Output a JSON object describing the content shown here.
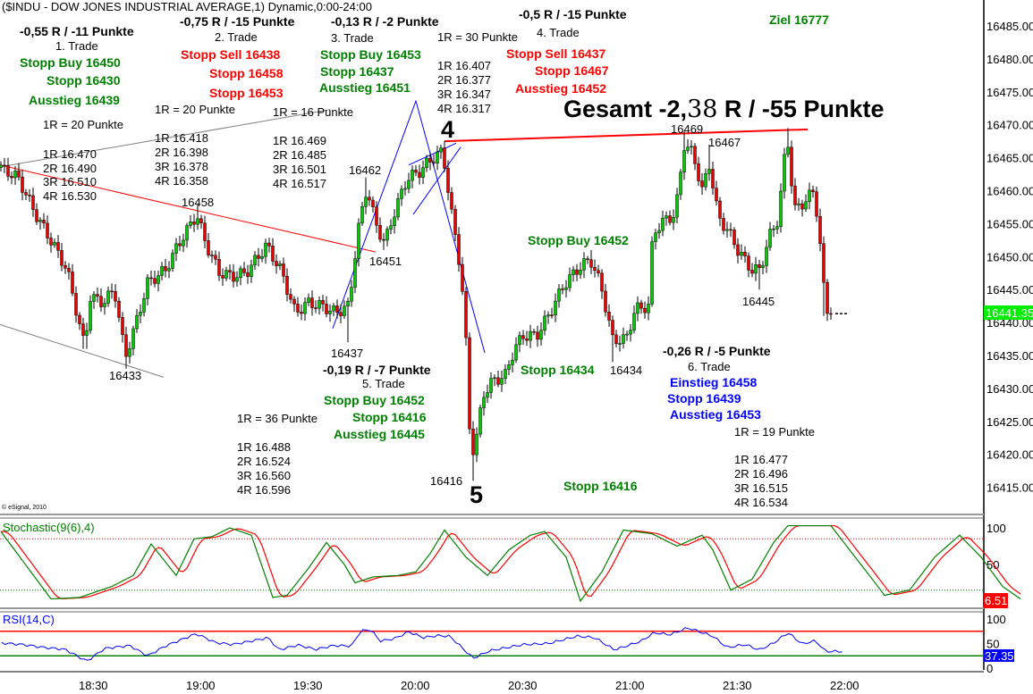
{
  "chart_data": {
    "type": "candlestick",
    "title": "($INDU - DOW JONES INDUSTRIAL AVERAGE,1) Dynamic,0:00-24:00",
    "copyright": "© eSignal, 2010",
    "x_unit": "minutes after 18:00",
    "xlim": [
      3.75,
      270
    ],
    "x_ticks": [
      "18:30",
      "19:00",
      "19:30",
      "20:00",
      "20:30",
      "21:00",
      "21:30",
      "22:00"
    ],
    "ylim": [
      16411,
      16489
    ],
    "y_ticks": [
      "16485.00",
      "16480.00",
      "16475.00",
      "16470.00",
      "16465.00",
      "16460.00",
      "16455.00",
      "16450.00",
      "16445.00",
      "16440.00",
      "16435.00",
      "16430.00",
      "16425.00",
      "16420.00",
      "16415.00"
    ],
    "last_price": "16441.35",
    "price_path": [
      [
        3.75,
        16463.5
      ],
      [
        8.75,
        16462
      ],
      [
        13.75,
        16456.4
      ],
      [
        18.75,
        16451.7
      ],
      [
        22.5,
        16448
      ],
      [
        27.5,
        16436
      ],
      [
        28.75,
        16444
      ],
      [
        32.5,
        16443
      ],
      [
        35.75,
        16445
      ],
      [
        38.75,
        16434.7
      ],
      [
        41.25,
        16439
      ],
      [
        45,
        16446
      ],
      [
        50,
        16448
      ],
      [
        53.75,
        16452
      ],
      [
        58.75,
        16456.4
      ],
      [
        61.25,
        16452
      ],
      [
        65,
        16447.6
      ],
      [
        68.75,
        16447
      ],
      [
        72.5,
        16447.5
      ],
      [
        78.25,
        16451.7
      ],
      [
        82.5,
        16447.6
      ],
      [
        86.25,
        16441.5
      ],
      [
        90,
        16443
      ],
      [
        93.75,
        16442.5
      ],
      [
        97.5,
        16441.5
      ],
      [
        101.25,
        16442.5
      ],
      [
        103.75,
        16453.7
      ],
      [
        106.25,
        16460.5
      ],
      [
        108.75,
        16455
      ],
      [
        111.25,
        16452
      ],
      [
        113.75,
        16456.4
      ],
      [
        117.5,
        16461.8
      ],
      [
        121.25,
        16463
      ],
      [
        123.75,
        16464.5
      ],
      [
        127.5,
        16466
      ],
      [
        130,
        16456.4
      ],
      [
        132.5,
        16448
      ],
      [
        133.75,
        16440
      ],
      [
        135,
        16424
      ],
      [
        136.25,
        16420
      ],
      [
        138.75,
        16429
      ],
      [
        141.25,
        16431
      ],
      [
        145,
        16432
      ],
      [
        147.5,
        16436
      ],
      [
        150,
        16438
      ],
      [
        153.75,
        16438
      ],
      [
        157.5,
        16441.5
      ],
      [
        161.25,
        16445.6
      ],
      [
        165,
        16448
      ],
      [
        168.75,
        16449.6
      ],
      [
        171.75,
        16445.6
      ],
      [
        175,
        16437.4
      ],
      [
        178.75,
        16437.4
      ],
      [
        181.25,
        16442
      ],
      [
        185,
        16442.5
      ],
      [
        186.25,
        16453.7
      ],
      [
        190,
        16455.7
      ],
      [
        192.5,
        16456.4
      ],
      [
        195,
        16467
      ],
      [
        197.5,
        16465.6
      ],
      [
        200,
        16460
      ],
      [
        202,
        16464
      ],
      [
        204.5,
        16456
      ],
      [
        207.5,
        16453.7
      ],
      [
        210,
        16451
      ],
      [
        213.75,
        16448
      ],
      [
        216.25,
        16448
      ],
      [
        218.75,
        16453
      ],
      [
        221.25,
        16455.7
      ],
      [
        223.75,
        16468.6
      ],
      [
        225.75,
        16457
      ],
      [
        228.75,
        16458.4
      ],
      [
        231.25,
        16460
      ],
      [
        232.5,
        16455
      ],
      [
        234.5,
        16442
      ],
      [
        236.25,
        16441.35
      ]
    ],
    "extremes": [
      [
        27.5,
        16436
      ],
      [
        38.75,
        16433
      ],
      [
        58.75,
        16458
      ],
      [
        101.25,
        16437
      ],
      [
        106.25,
        16462
      ],
      [
        111.25,
        16451
      ],
      [
        127.5,
        16467
      ],
      [
        136.25,
        16416
      ],
      [
        168.75,
        16451
      ],
      [
        175,
        16434
      ],
      [
        195,
        16469
      ],
      [
        202,
        16467
      ],
      [
        216.25,
        16445
      ],
      [
        223.75,
        16469.5
      ],
      [
        234.5,
        16441
      ]
    ],
    "lines": [
      {
        "color": "#ff0000",
        "points": [
          [
            3.75,
            16463.9
          ],
          [
            108.75,
            16450.7
          ]
        ]
      },
      {
        "color": "#808080",
        "points": [
          [
            3.75,
            16463.6
          ],
          [
            96,
            16472.3
          ]
        ]
      },
      {
        "color": "#808080",
        "points": [
          [
            3.75,
            16439.7
          ],
          [
            49.5,
            16431.7
          ]
        ]
      },
      {
        "color": "#0000ff",
        "points": [
          [
            96.75,
            16439.1
          ],
          [
            120,
            16473.6
          ],
          [
            139.25,
            16435.4
          ]
        ]
      },
      {
        "color": "#0000ff",
        "points": [
          [
            118,
            16463.9
          ],
          [
            131.25,
            16467.2
          ]
        ]
      },
      {
        "color": "#0000ff",
        "points": [
          [
            119.25,
            16456.4
          ],
          [
            132.5,
            16466.6
          ]
        ]
      },
      {
        "color": "#ff0000",
        "points": [
          [
            128,
            16467.5
          ],
          [
            229.5,
            16469.3
          ]
        ]
      }
    ],
    "stochastic": {
      "label": "Stochastic(9(6),4)",
      "last": "6.51",
      "ticks": [
        "100",
        "50"
      ],
      "levels": [
        85,
        15
      ],
      "k": [
        [
          4,
          95
        ],
        [
          18,
          3
        ],
        [
          26,
          5
        ],
        [
          35,
          20
        ],
        [
          41,
          35
        ],
        [
          46,
          78
        ],
        [
          53,
          35
        ],
        [
          58,
          85
        ],
        [
          63,
          88
        ],
        [
          68,
          100
        ],
        [
          74,
          90
        ],
        [
          80,
          5
        ],
        [
          84,
          8
        ],
        [
          90,
          45
        ],
        [
          95,
          80
        ],
        [
          100,
          50
        ],
        [
          103,
          25
        ],
        [
          108,
          33
        ],
        [
          115,
          35
        ],
        [
          120,
          40
        ],
        [
          124,
          65
        ],
        [
          128,
          97
        ],
        [
          134,
          60
        ],
        [
          140,
          35
        ],
        [
          146,
          70
        ],
        [
          152,
          90
        ],
        [
          156,
          95
        ],
        [
          162,
          60
        ],
        [
          166,
          0
        ],
        [
          172,
          40
        ],
        [
          178,
          97
        ],
        [
          186,
          92
        ],
        [
          193,
          75
        ],
        [
          200,
          90
        ],
        [
          203,
          70
        ],
        [
          208,
          15
        ],
        [
          214,
          30
        ],
        [
          220,
          80
        ],
        [
          224,
          103
        ],
        [
          236,
          103
        ],
        [
          242,
          65
        ],
        [
          246,
          40
        ],
        [
          251,
          8
        ],
        [
          258,
          15
        ],
        [
          265,
          60
        ],
        [
          272,
          90
        ],
        [
          278,
          60
        ],
        [
          284,
          20
        ],
        [
          289,
          3
        ]
      ],
      "k_color": "#008000",
      "d_color": "#ff0000"
    },
    "rsi": {
      "label": "RSI(14,C)",
      "last": "37.35",
      "ticks": [
        "100",
        "50",
        "0"
      ],
      "levels": [
        75,
        25
      ],
      "values": [
        [
          4.2,
          51
        ],
        [
          10,
          48
        ],
        [
          16,
          42
        ],
        [
          22,
          38
        ],
        [
          28,
          14
        ],
        [
          33,
          40
        ],
        [
          40,
          46
        ],
        [
          45,
          25
        ],
        [
          50,
          45
        ],
        [
          58.6,
          70
        ],
        [
          64,
          52
        ],
        [
          68.7,
          48
        ],
        [
          74,
          55
        ],
        [
          78.8,
          62
        ],
        [
          81.6,
          37
        ],
        [
          87,
          47
        ],
        [
          92,
          38
        ],
        [
          97,
          46
        ],
        [
          102,
          45
        ],
        [
          104.6,
          76
        ],
        [
          107.4,
          78
        ],
        [
          110,
          55
        ],
        [
          114,
          60
        ],
        [
          118,
          74
        ],
        [
          122,
          62
        ],
        [
          126,
          66
        ],
        [
          129.5,
          65
        ],
        [
          136,
          20
        ],
        [
          140.5,
          35
        ],
        [
          150,
          48
        ],
        [
          157,
          50
        ],
        [
          165,
          65
        ],
        [
          170,
          62
        ],
        [
          175.5,
          37
        ],
        [
          183,
          55
        ],
        [
          186.6,
          72
        ],
        [
          191,
          68
        ],
        [
          196,
          82
        ],
        [
          203,
          65
        ],
        [
          207,
          42
        ],
        [
          212,
          48
        ],
        [
          216,
          37
        ],
        [
          220,
          51
        ],
        [
          224,
          72
        ],
        [
          228,
          49
        ],
        [
          231.7,
          56
        ],
        [
          234.5,
          34
        ],
        [
          240,
          34
        ]
      ],
      "color": "#0000ff"
    }
  },
  "annotations": {
    "trade1": {
      "result": "-0,55 R / -11 Punkte",
      "name": "1. Trade",
      "entry": "Stopp Buy 16450",
      "stop": "Stopp 16430",
      "exit": "Ausstieg 16439",
      "r": "1R = 20 Punkte",
      "targets": [
        "1R 16.470",
        "2R 16.490",
        "3R 16.510",
        "4R 16.530"
      ]
    },
    "trade2": {
      "result": "-0,75 R / -15 Punkte",
      "name": "2. Trade",
      "entry": "Stopp Sell 16438",
      "stop": "Stopp 16458",
      "exit": "Stopp 16453",
      "r": "1R = 20 Punkte",
      "targets": [
        "1R 16.418",
        "2R 16.398",
        "3R 16.378",
        "4R 16.358"
      ]
    },
    "trade3": {
      "result": "-0,13 R / -2 Punkte",
      "name": "3. Trade",
      "entry": "Stopp Buy 16453",
      "stop": "Stopp 16437",
      "exit": "Ausstieg 16451",
      "r": "1R = 16 Punkte",
      "targets": [
        "1R 16.469",
        "2R 16.485",
        "3R 16.501",
        "4R 16.517"
      ]
    },
    "trade4": {
      "result": "-0,5 R / -15 Punkte",
      "name": "4. Trade",
      "entry": "Stopp Sell 16437",
      "stop": "Stopp 16467",
      "exit": "Ausstieg 16452",
      "r": "1R = 30 Punkte",
      "targets": [
        "1R 16.407",
        "2R 16.377",
        "3R 16.347",
        "4R 16.317"
      ]
    },
    "trade5": {
      "result": "-0,19 R / -7 Punkte",
      "name": "5. Trade",
      "entry": "Stopp Buy 16452",
      "stop": "Stopp 16416",
      "exit": "Ausstieg 16445",
      "r": "1R = 36 Punkte",
      "targets": [
        "1R 16.488",
        "2R 16.524",
        "3R 16.560",
        "4R 16.596"
      ]
    },
    "trade6": {
      "result": "-0,26 R / -5 Punkte",
      "name": "6. Trade",
      "entry": "Einstieg 16458",
      "stop": "Stopp 16439",
      "exit": "Ausstieg 16453",
      "r": "1R = 19 Punkte",
      "targets": [
        "1R 16.477",
        "2R 16.496",
        "3R 16.515",
        "4R 16.534"
      ]
    },
    "target": "Ziel 16777",
    "total": {
      "a": "Gesamt  -2,",
      "b": "38",
      "c": " R / -55 Punkte"
    },
    "wave4": "4",
    "wave5": "5",
    "extra_green": [
      "Stopp Buy 16452",
      "Stopp 16434",
      "Stopp 16416"
    ],
    "price_labels": [
      "16458",
      "16433",
      "16462",
      "16451",
      "16437",
      "16469",
      "16467",
      "16445",
      "16434",
      "16416"
    ]
  }
}
